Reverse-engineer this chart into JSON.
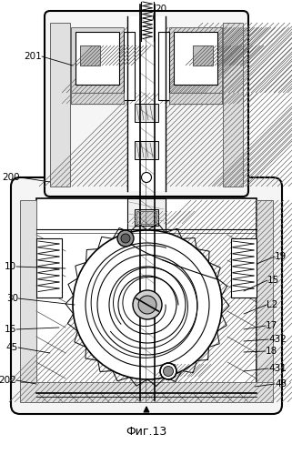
{
  "title": "Фиг.13",
  "bg": "#ffffff",
  "lc": "#000000",
  "gray1": "#a0a0a0",
  "gray2": "#c8c8c8",
  "gray3": "#e8e8e8",
  "hatch_gray": "#d0d0d0"
}
